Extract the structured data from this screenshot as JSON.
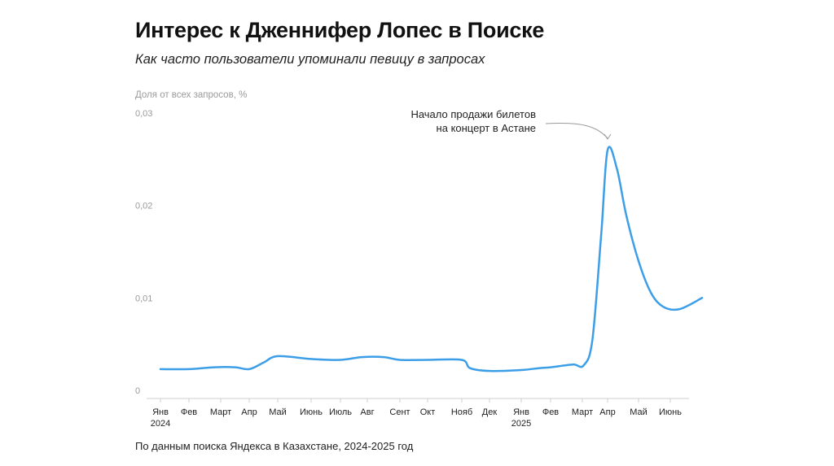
{
  "header": {
    "title": "Интерес к Дженнифер Лопес в Поиске",
    "subtitle": "Как часто пользователи упоминали певицу в запросах"
  },
  "footer": {
    "source": "По данным поиска Яндекса в Казахстане, 2024-2025 год"
  },
  "chart_data": {
    "type": "line",
    "ylabel": "Доля от всех запросов, %",
    "ylim": [
      0,
      0.03
    ],
    "yticks": [
      "0",
      "0,01",
      "0,02",
      "0,03"
    ],
    "ytick_values": [
      0,
      0.01,
      0.02,
      0.03
    ],
    "grid": false,
    "line_color": "#3d9ee8",
    "x_tick_labels": [
      {
        "label": "Янв",
        "year": "2024"
      },
      {
        "label": "Фев",
        "year": ""
      },
      {
        "label": "Март",
        "year": ""
      },
      {
        "label": "Апр",
        "year": ""
      },
      {
        "label": "Май",
        "year": ""
      },
      {
        "label": "Июнь",
        "year": ""
      },
      {
        "label": "Июль",
        "year": ""
      },
      {
        "label": "Авг",
        "year": ""
      },
      {
        "label": "Сент",
        "year": ""
      },
      {
        "label": "Окт",
        "year": ""
      },
      {
        "label": "Нояб",
        "year": ""
      },
      {
        "label": "Дек",
        "year": ""
      },
      {
        "label": "Янв",
        "year": "2025"
      },
      {
        "label": "Фев",
        "year": ""
      },
      {
        "label": "Март",
        "year": ""
      },
      {
        "label": "Апр",
        "year": ""
      },
      {
        "label": "Май",
        "year": ""
      },
      {
        "label": "Июнь",
        "year": ""
      }
    ],
    "x": [
      0,
      1,
      1.8,
      2.5,
      3.0,
      3.5,
      4.0,
      5.0,
      6.0,
      6.8,
      7.5,
      8.0,
      9.0,
      10.0,
      10.3,
      11.0,
      12.0,
      12.6,
      13.0,
      13.7,
      14.05,
      14.4,
      14.75,
      15.0,
      15.3,
      15.6,
      16.0,
      16.4,
      16.8,
      17.3,
      18.0
    ],
    "values": [
      0.0023,
      0.0023,
      0.0025,
      0.0025,
      0.0023,
      0.003,
      0.0037,
      0.0034,
      0.0033,
      0.0036,
      0.0036,
      0.0033,
      0.0033,
      0.0033,
      0.0024,
      0.0021,
      0.0022,
      0.0024,
      0.0025,
      0.0028,
      0.0027,
      0.0055,
      0.017,
      0.026,
      0.024,
      0.019,
      0.014,
      0.0105,
      0.009,
      0.0088,
      0.01
    ],
    "annotation": {
      "lines": [
        "Начало продажи билетов",
        "на концерт в Астане"
      ],
      "x": 15.0
    }
  }
}
